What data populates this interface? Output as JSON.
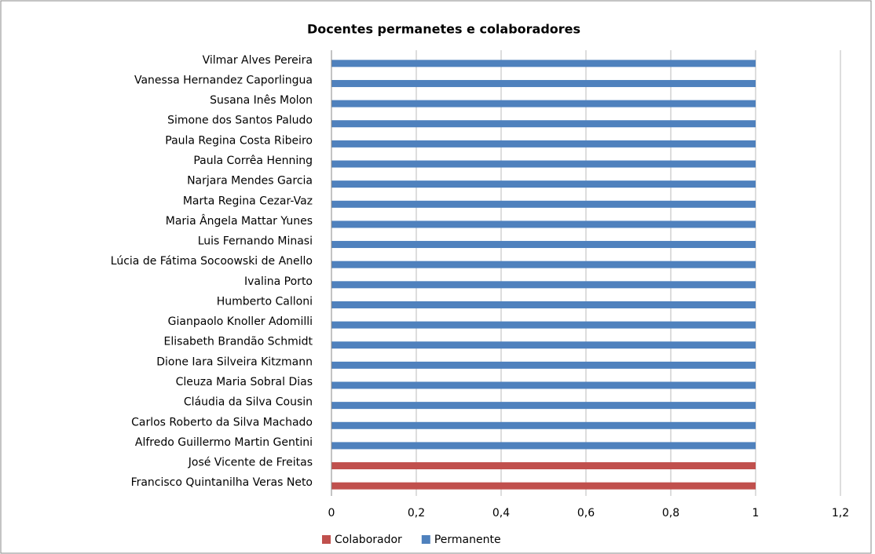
{
  "chart_data": {
    "type": "hbar",
    "title": "Docentes permanetes e colaboradores",
    "categories": [
      "Vilmar Alves Pereira",
      "Vanessa Hernandez Caporlingua",
      "Susana Inês Molon",
      "Simone dos Santos Paludo",
      "Paula Regina Costa Ribeiro",
      "Paula Corrêa Henning",
      "Narjara Mendes Garcia",
      "Marta Regina Cezar-Vaz",
      "Maria Ângela Mattar Yunes",
      "Luis Fernando Minasi",
      "Lúcia de Fátima Socoowski de Anello",
      "Ivalina Porto",
      "Humberto Calloni",
      "Gianpaolo Knoller Adomilli",
      "Elisabeth Brandão Schmidt",
      "Dione Iara Silveira Kitzmann",
      "Cleuza Maria Sobral Dias",
      "Cláudia da Silva Cousin",
      "Carlos Roberto da Silva Machado",
      "Alfredo Guillermo Martin Gentini",
      "José Vicente de Freitas",
      "Francisco Quintanilha Veras Neto"
    ],
    "series": [
      {
        "name": "Colaborador",
        "color": "#c0504d",
        "values": [
          null,
          null,
          null,
          null,
          null,
          null,
          null,
          null,
          null,
          null,
          null,
          null,
          null,
          null,
          null,
          null,
          null,
          null,
          null,
          null,
          1,
          1
        ]
      },
      {
        "name": "Permanente",
        "color": "#4f81bd",
        "values": [
          1,
          1,
          1,
          1,
          1,
          1,
          1,
          1,
          1,
          1,
          1,
          1,
          1,
          1,
          1,
          1,
          1,
          1,
          1,
          1,
          null,
          null
        ]
      }
    ],
    "xlim": [
      0,
      1.2
    ],
    "xticks": [
      0,
      {
        "value": 0.2,
        "label": "0,2"
      },
      {
        "value": 0.4,
        "label": "0,4"
      },
      {
        "value": 0.6,
        "label": "0,6"
      },
      {
        "value": 0.8,
        "label": "0,8"
      },
      1,
      {
        "value": 1.2,
        "label": "1,2"
      }
    ],
    "grid": true,
    "legend": "bottom"
  }
}
